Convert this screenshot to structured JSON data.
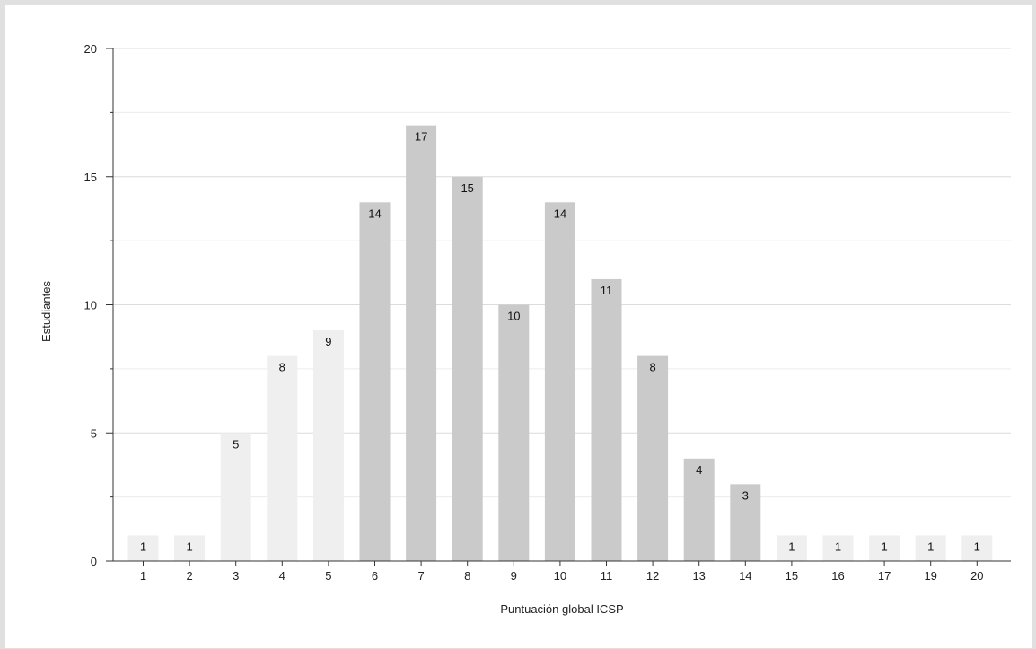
{
  "chart_data": {
    "type": "bar",
    "categories": [
      "1",
      "2",
      "3",
      "4",
      "5",
      "6",
      "7",
      "8",
      "9",
      "10",
      "11",
      "12",
      "13",
      "14",
      "15",
      "16",
      "17",
      "19",
      "20"
    ],
    "values": [
      1,
      1,
      5,
      8,
      9,
      14,
      17,
      15,
      10,
      14,
      11,
      8,
      4,
      3,
      1,
      1,
      1,
      1,
      1
    ],
    "xlabel": "Puntuación global ICSP",
    "ylabel": "Estudiantes",
    "ylim": [
      0,
      20
    ],
    "yticks": [
      0,
      5,
      10,
      15,
      20
    ],
    "grid": true,
    "legend": "none",
    "colors": {
      "light": "#efefef",
      "dark": "#cacaca",
      "grid": "#dcdcdc",
      "axis": "#333333"
    },
    "bar_colors": [
      "light",
      "light",
      "light",
      "light",
      "light",
      "dark",
      "dark",
      "dark",
      "dark",
      "dark",
      "dark",
      "dark",
      "dark",
      "dark",
      "light",
      "light",
      "light",
      "light",
      "light"
    ]
  }
}
